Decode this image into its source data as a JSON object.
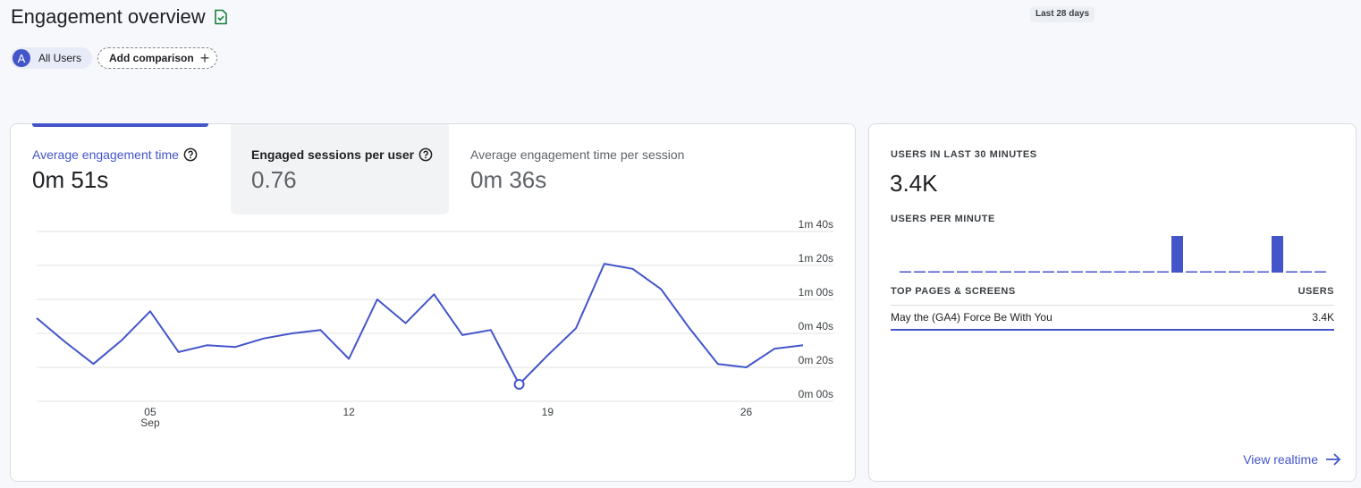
{
  "header": {
    "title": "Engagement overview",
    "date_range": "Last 28 days"
  },
  "comparison": {
    "segment_initial": "A",
    "segment_label": "All Users",
    "add_label": "Add comparison"
  },
  "metrics": [
    {
      "label": "Average engagement time",
      "value": "0m 51s"
    },
    {
      "label": "Engaged sessions per user",
      "value": "0.76"
    },
    {
      "label": "Average engagement time per session",
      "value": "0m 36s"
    }
  ],
  "chart_data": {
    "type": "line",
    "title": "",
    "xlabel": "",
    "ylabel": "",
    "x_ticks": [
      {
        "day": 5,
        "label": "05",
        "sublabel": "Sep"
      },
      {
        "day": 12,
        "label": "12"
      },
      {
        "day": 19,
        "label": "19"
      },
      {
        "day": 26,
        "label": "26"
      }
    ],
    "y_ticks": [
      {
        "value": 0,
        "label": "0m 00s"
      },
      {
        "value": 20,
        "label": "0m 20s"
      },
      {
        "value": 40,
        "label": "0m 40s"
      },
      {
        "value": 60,
        "label": "1m 00s"
      },
      {
        "value": 80,
        "label": "1m 20s"
      },
      {
        "value": 100,
        "label": "1m 40s"
      }
    ],
    "ylim": [
      0,
      100
    ],
    "x": [
      1,
      2,
      3,
      4,
      5,
      6,
      7,
      8,
      9,
      10,
      11,
      12,
      13,
      14,
      15,
      16,
      17,
      18,
      19,
      20,
      21,
      22,
      23,
      24,
      25,
      26,
      27,
      28
    ],
    "series": [
      {
        "values": [
          49,
          35,
          22,
          36,
          53,
          29,
          33,
          32,
          37,
          40,
          42,
          25,
          60,
          46,
          63,
          39,
          42,
          10,
          27,
          43,
          81,
          78,
          66,
          43,
          22,
          20,
          31,
          33
        ]
      }
    ],
    "highlight_index": 17,
    "grid": true,
    "color": "#4355c9"
  },
  "realtime": {
    "users_label": "USERS IN LAST 30 MINUTES",
    "users_value": "3.4K",
    "per_minute_label": "USERS PER MINUTE",
    "per_minute": [
      0,
      0,
      0,
      0,
      0,
      0,
      0,
      0,
      0,
      0,
      0,
      0,
      0,
      0,
      0,
      0,
      0,
      0,
      0,
      1,
      0,
      0,
      0,
      0,
      0,
      0,
      1,
      0,
      0,
      0
    ],
    "top_pages_label": "TOP PAGES & SCREENS",
    "users_col": "USERS",
    "rows": [
      {
        "page": "May the (GA4) Force Be With You",
        "users": "3.4K"
      }
    ],
    "view_label": "View realtime"
  }
}
